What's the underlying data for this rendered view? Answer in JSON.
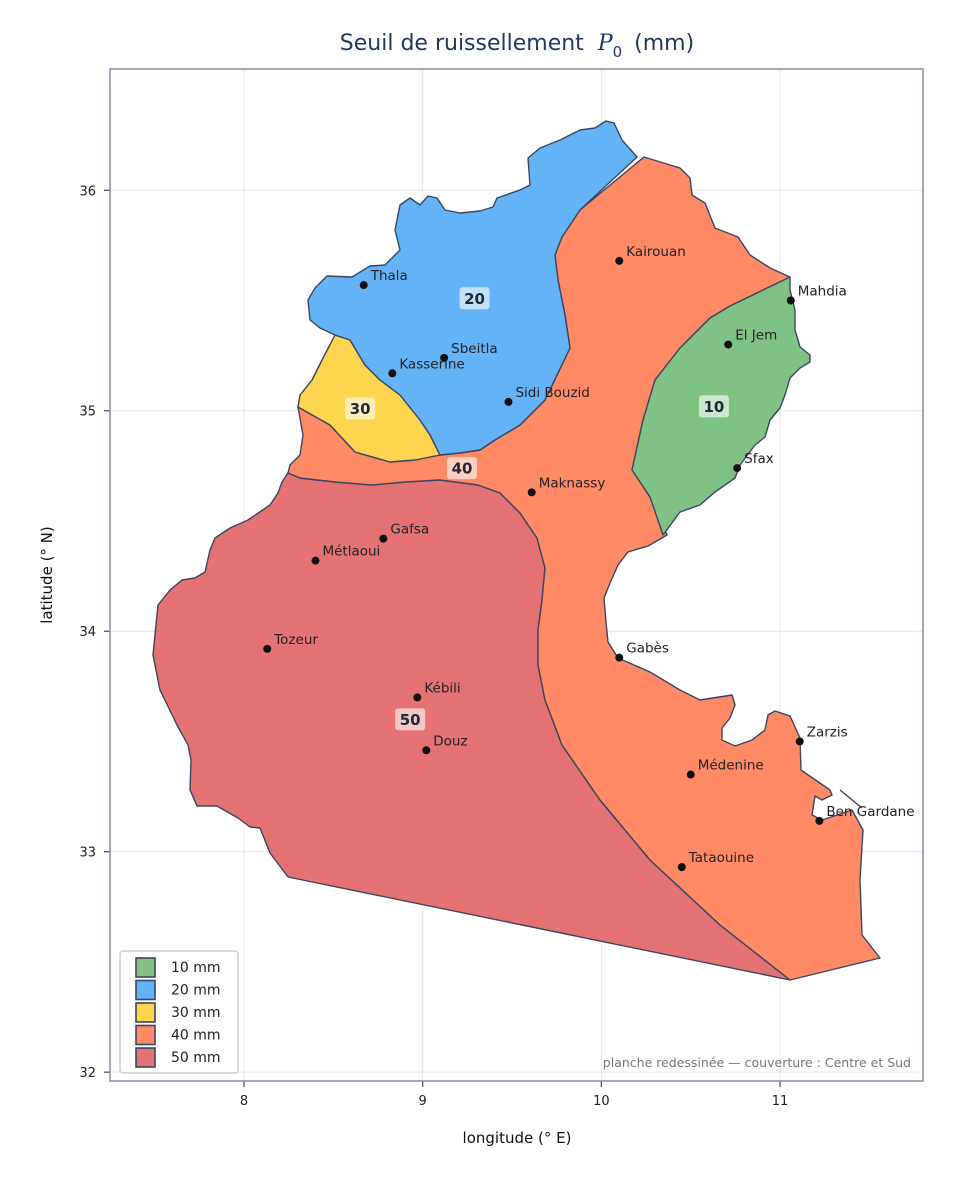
{
  "title": {
    "prefix": "Seuil de ruissellement",
    "symbol": "P",
    "subscript": "0",
    "unit": "(mm)"
  },
  "axes": {
    "xlabel": "longitude (° E)",
    "ylabel": "latitude (° N)",
    "xlim": [
      7.25,
      11.8
    ],
    "ylim": [
      31.96,
      36.55
    ],
    "xticks": [
      {
        "value": 8,
        "label": "8"
      },
      {
        "value": 9,
        "label": "9"
      },
      {
        "value": 10,
        "label": "10"
      },
      {
        "value": 11,
        "label": "11"
      }
    ],
    "yticks": [
      {
        "value": 32,
        "label": "32"
      },
      {
        "value": 33,
        "label": "33"
      },
      {
        "value": 34,
        "label": "34"
      },
      {
        "value": 35,
        "label": "35"
      },
      {
        "value": 36,
        "label": "36"
      }
    ],
    "grid": true
  },
  "zones": [
    {
      "label": "10",
      "color": "#80c283",
      "label_at": [
        10.63,
        35.02
      ]
    },
    {
      "label": "20",
      "color": "#64b3f6",
      "label_at": [
        9.29,
        35.51
      ]
    },
    {
      "label": "30",
      "color": "#ffd54f",
      "label_at": [
        8.65,
        35.01
      ]
    },
    {
      "label": "40",
      "color": "#ff8a65",
      "label_at": [
        9.22,
        34.74
      ]
    },
    {
      "label": "50",
      "color": "#e57373",
      "label_at": [
        8.93,
        33.6
      ]
    }
  ],
  "legend": {
    "position": "lower-left",
    "items": [
      {
        "label": "10 mm",
        "color": "#80c283"
      },
      {
        "label": "20 mm",
        "color": "#64b3f6"
      },
      {
        "label": "30 mm",
        "color": "#ffd54f"
      },
      {
        "label": "40 mm",
        "color": "#ff8a65"
      },
      {
        "label": "50 mm",
        "color": "#e57373"
      }
    ]
  },
  "cities": [
    {
      "name": "Thala",
      "lon": 8.67,
      "lat": 35.57
    },
    {
      "name": "Sbeitla",
      "lon": 9.12,
      "lat": 35.24
    },
    {
      "name": "Kasserine",
      "lon": 8.83,
      "lat": 35.17
    },
    {
      "name": "Kairouan",
      "lon": 10.1,
      "lat": 35.68
    },
    {
      "name": "Mahdia",
      "lon": 11.06,
      "lat": 35.5
    },
    {
      "name": "El Jem",
      "lon": 10.71,
      "lat": 35.3
    },
    {
      "name": "Sidi Bouzid",
      "lon": 9.48,
      "lat": 35.04
    },
    {
      "name": "Sfax",
      "lon": 10.76,
      "lat": 34.74
    },
    {
      "name": "Maknassy",
      "lon": 9.61,
      "lat": 34.63
    },
    {
      "name": "Gafsa",
      "lon": 8.78,
      "lat": 34.42
    },
    {
      "name": "Métlaoui",
      "lon": 8.4,
      "lat": 34.32
    },
    {
      "name": "Tozeur",
      "lon": 8.13,
      "lat": 33.92
    },
    {
      "name": "Gabès",
      "lon": 10.1,
      "lat": 33.88
    },
    {
      "name": "Kébili",
      "lon": 8.97,
      "lat": 33.7
    },
    {
      "name": "Douz",
      "lon": 9.02,
      "lat": 33.46
    },
    {
      "name": "Zarzis",
      "lon": 11.11,
      "lat": 33.5
    },
    {
      "name": "Médenine",
      "lon": 10.5,
      "lat": 33.35
    },
    {
      "name": "Ben Gardane",
      "lon": 11.22,
      "lat": 33.14
    },
    {
      "name": "Tataouine",
      "lon": 10.45,
      "lat": 32.93
    }
  ],
  "credit": "planche redessinée — couverture : Centre et Sud",
  "colors": {
    "frame": "#8a94aa",
    "boundary": "#3a4660",
    "city_dot": "#111111",
    "title": "#1f3864"
  }
}
